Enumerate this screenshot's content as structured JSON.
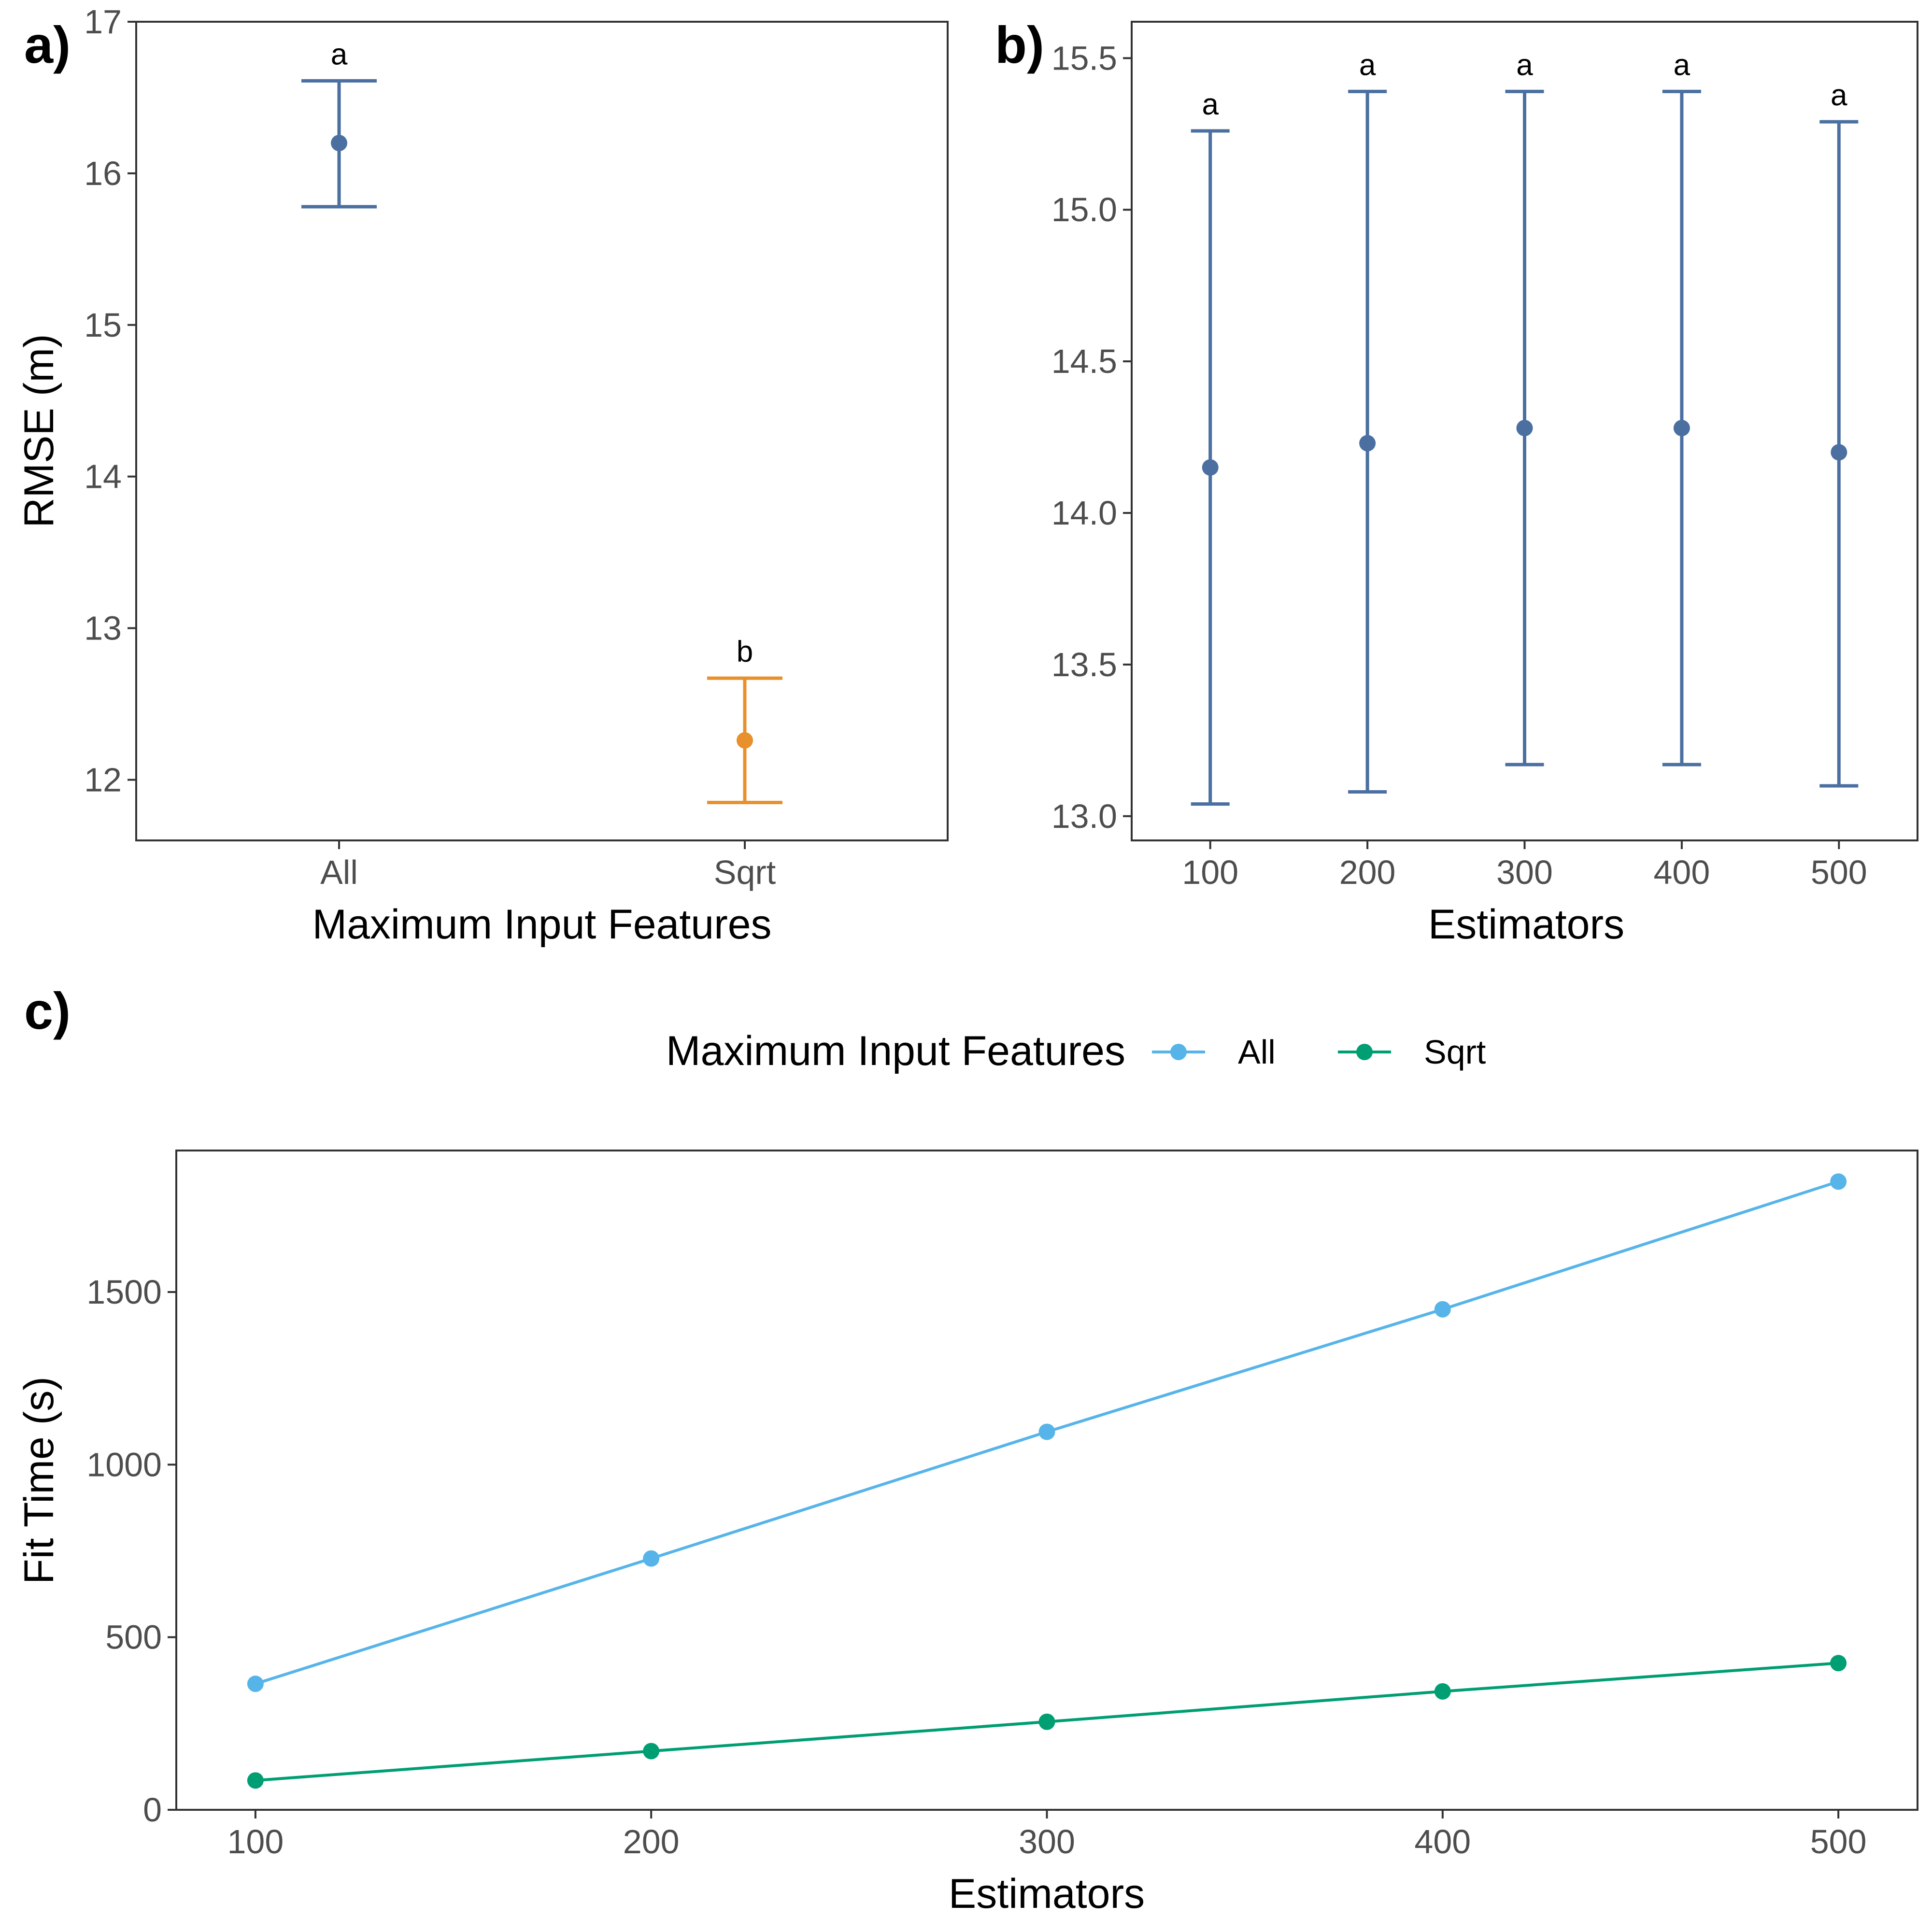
{
  "chart_data": [
    {
      "panel_label": "a)",
      "type": "scatter",
      "subtype": "point-with-errorbars",
      "xlabel": "Maximum Input Features",
      "ylabel": "RMSE (m)",
      "categories": [
        "All",
        "Sqrt"
      ],
      "values": [
        16.2,
        12.26
      ],
      "error_lower": [
        15.78,
        11.85
      ],
      "error_upper": [
        16.61,
        12.67
      ],
      "significance_letters": [
        "a",
        "b"
      ],
      "colors": [
        "#4a6fa0",
        "#e8902c"
      ],
      "ylim": [
        11.6,
        17.0
      ],
      "yticks": [
        12,
        13,
        14,
        15,
        16,
        17
      ],
      "ytick_labels": [
        "12",
        "13",
        "14",
        "15",
        "16",
        "17"
      ],
      "grid": false
    },
    {
      "panel_label": "b)",
      "type": "scatter",
      "subtype": "point-with-errorbars",
      "xlabel": "Estimators",
      "ylabel": "",
      "categories": [
        "100",
        "200",
        "300",
        "400",
        "500"
      ],
      "values": [
        14.15,
        14.23,
        14.28,
        14.28,
        14.2
      ],
      "error_lower": [
        13.04,
        13.08,
        13.17,
        13.17,
        13.1
      ],
      "error_upper": [
        15.26,
        15.39,
        15.39,
        15.39,
        15.29
      ],
      "significance_letters": [
        "a",
        "a",
        "a",
        "a",
        "a"
      ],
      "colors": [
        "#4a6fa0"
      ],
      "ylim": [
        12.92,
        15.62
      ],
      "yticks": [
        13.0,
        13.5,
        14.0,
        14.5,
        15.0,
        15.5
      ],
      "ytick_labels": [
        "13.0",
        "13.5",
        "14.0",
        "14.5",
        "15.0",
        "15.5"
      ],
      "grid": false
    },
    {
      "panel_label": "c)",
      "type": "line",
      "xlabel": "Estimators",
      "ylabel": "Fit Time (s)",
      "x": [
        100,
        200,
        300,
        400,
        500
      ],
      "xticks": [
        100,
        200,
        300,
        400,
        500
      ],
      "xlim": [
        80,
        520
      ],
      "yticks": [
        0,
        500,
        1000,
        1500
      ],
      "ylim": [
        0,
        1910
      ],
      "legend_title": "Maximum Input Features",
      "legend_position": "top",
      "series": [
        {
          "name": "All",
          "color": "#56b4e9",
          "values": [
            365,
            728,
            1095,
            1450,
            1820
          ]
        },
        {
          "name": "Sqrt",
          "color": "#009e73",
          "values": [
            85,
            170,
            255,
            343,
            425
          ]
        }
      ],
      "grid": false
    }
  ]
}
